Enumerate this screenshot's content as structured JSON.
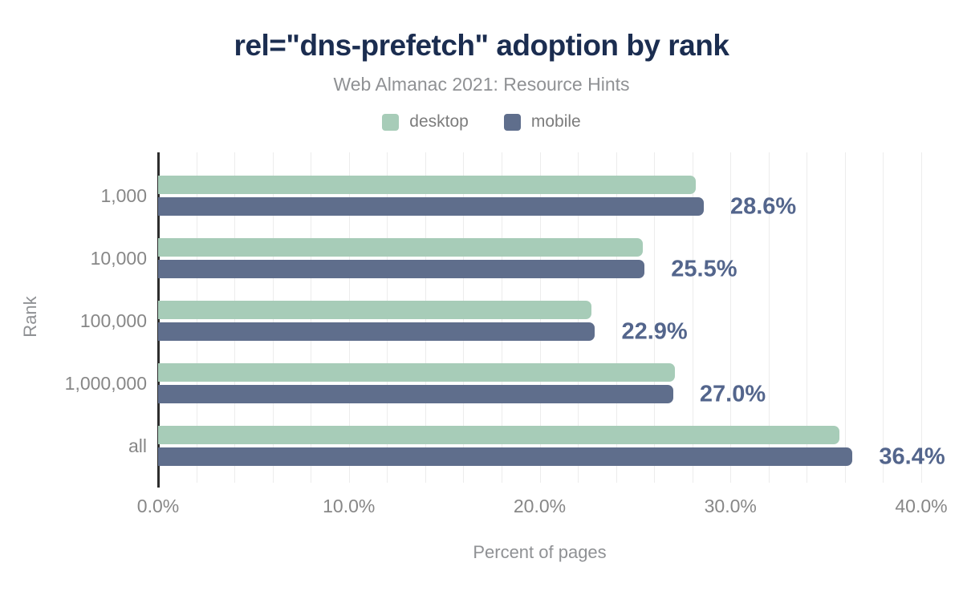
{
  "chart_data": {
    "type": "bar",
    "orientation": "horizontal",
    "title": "rel=\"dns-prefetch\" adoption by rank",
    "subtitle": "Web Almanac 2021: Resource Hints",
    "categories": [
      "1,000",
      "10,000",
      "100,000",
      "1,000,000",
      "all"
    ],
    "series": [
      {
        "name": "desktop",
        "color": "#a7ccb8",
        "values": [
          28.2,
          25.4,
          22.7,
          27.1,
          35.7
        ]
      },
      {
        "name": "mobile",
        "color": "#5f6e8c",
        "values": [
          28.6,
          25.5,
          22.9,
          27.0,
          36.4
        ]
      }
    ],
    "annotations": [
      "28.6%",
      "25.5%",
      "22.9%",
      "27.0%",
      "36.4%"
    ],
    "annotation_series": "mobile",
    "xlabel": "Percent of pages",
    "ylabel": "Rank",
    "xlim": [
      0,
      40
    ],
    "xticks": [
      0,
      10,
      20,
      30,
      40
    ],
    "xtick_labels": [
      "0.0%",
      "10.0%",
      "20.0%",
      "30.0%",
      "40.0%"
    ],
    "grid": true,
    "grid_step_pct": 2,
    "legend_position": "top"
  },
  "colors": {
    "title": "#1b2d50",
    "subtitle": "#8f9194",
    "axis_text": "#878787",
    "annotation": "#53658c",
    "gridline": "#ececec",
    "axis_line": "#2d2d2d",
    "background": "#ffffff"
  }
}
